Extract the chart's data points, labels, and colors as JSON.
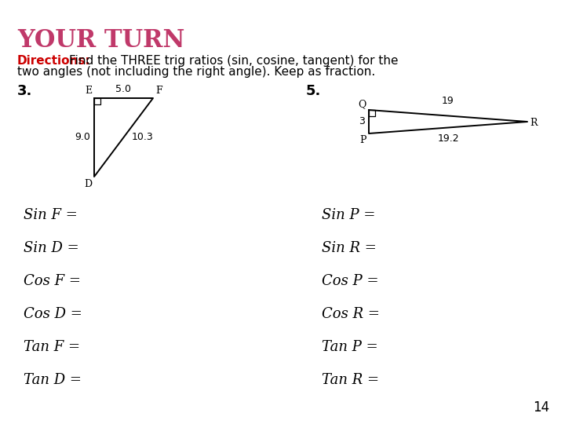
{
  "title": "YOUR TURN",
  "title_color": "#c0396a",
  "title_fontsize": 22,
  "directions_bold": "Directions:",
  "directions_bold_color": "#cc0000",
  "directions_text": " Find the THREE trig ratios (sin, cosine, tangent) for the two angles (not including the right angle). Keep as fraction.",
  "directions_fontsize": 11,
  "problem3_label": "3.",
  "problem5_label": "5.",
  "problem_label_fontsize": 13,
  "trig_rows_left": [
    "Sin F =",
    "Sin D =",
    "Cos F =",
    "Cos D =",
    "Tan F =",
    "Tan D ="
  ],
  "trig_rows_right": [
    "Sin P =",
    "Sin R =",
    "Cos P =",
    "Cos R =",
    "Tan P =",
    "Tan R ="
  ],
  "trig_fontsize": 11,
  "page_number": "14",
  "bg_color": "#ffffff",
  "text_color": "#000000"
}
